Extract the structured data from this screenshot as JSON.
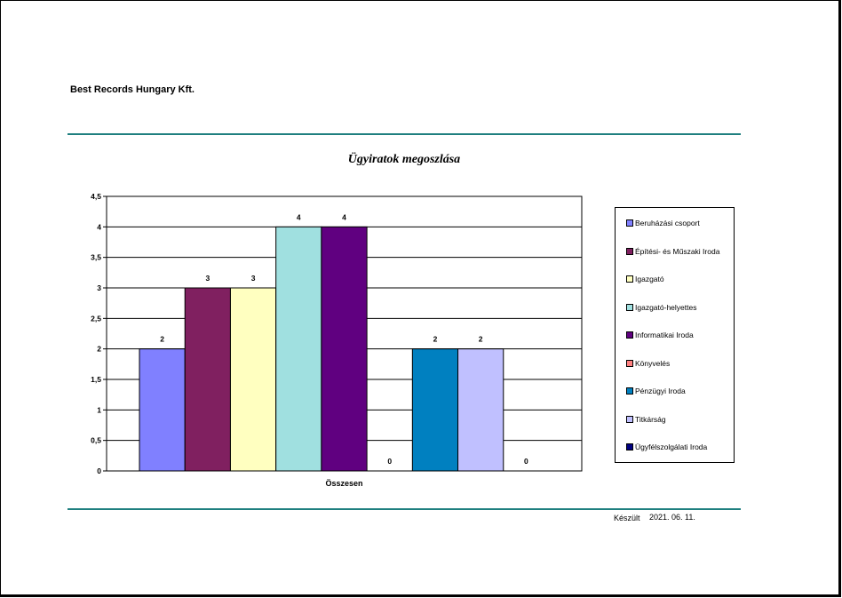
{
  "header": {
    "company": "Best Records Hungary Kft."
  },
  "footer": {
    "label": "Készült",
    "date": "2021. 06. 11."
  },
  "colors": {
    "rule": "#1f7f7f"
  },
  "chart_data": {
    "type": "bar",
    "title": "Ügyiratok megoszlása",
    "categories": [
      "Összesen"
    ],
    "xlabel": "",
    "ylabel": "",
    "ylim": [
      0,
      4.5
    ],
    "yticks": [
      "0",
      "0,5",
      "1",
      "1,5",
      "2",
      "2,5",
      "3",
      "3,5",
      "4",
      "4,5"
    ],
    "grid": true,
    "legend_position": "right",
    "series": [
      {
        "name": "Beruházási csoport",
        "values": [
          2
        ],
        "label": "2",
        "color": "#8080ff"
      },
      {
        "name": "Építési- és Műszaki Iroda",
        "values": [
          3
        ],
        "label": "3",
        "color": "#802060"
      },
      {
        "name": "Igazgató",
        "values": [
          3
        ],
        "label": "3",
        "color": "#ffffc0"
      },
      {
        "name": "Igazgató-helyettes",
        "values": [
          4
        ],
        "label": "4",
        "color": "#a0e0e0"
      },
      {
        "name": "Informatikai Iroda",
        "values": [
          4
        ],
        "label": "4",
        "color": "#600080"
      },
      {
        "name": "Könyvelés",
        "values": [
          0
        ],
        "label": "0",
        "color": "#ff8080"
      },
      {
        "name": "Pénzügyi Iroda",
        "values": [
          2
        ],
        "label": "2",
        "color": "#0080c0"
      },
      {
        "name": "Titkárság",
        "values": [
          2
        ],
        "label": "2",
        "color": "#c0c0ff"
      },
      {
        "name": "Ügyfélszolgálati Iroda",
        "values": [
          0
        ],
        "label": "0",
        "color": "#000080"
      }
    ]
  }
}
